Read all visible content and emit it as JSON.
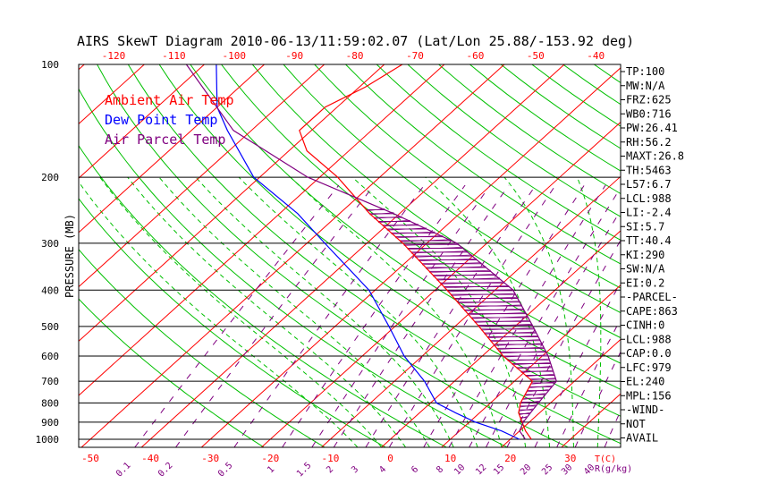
{
  "chart_data": {
    "type": "line",
    "title": "AIRS SkewT Diagram 2010-06-13/11:59:02.07 (Lat/Lon 25.88/-153.92 deg)",
    "ylabel": "PRESSURE (MB)",
    "xlabel": "T(C)",
    "mixing_ratio_unit": "R(g/kg)",
    "ylim": [
      1050,
      100
    ],
    "xlim": [
      -50,
      40
    ],
    "top_temp_ticks": [
      "-120",
      "-110",
      "-100",
      "-90",
      "-80",
      "-70",
      "-60",
      "-50",
      "-40"
    ],
    "bottom_temp_ticks": [
      "-50",
      "-40",
      "-30",
      "-20",
      "-10",
      "0",
      "10",
      "20",
      "30"
    ],
    "pressure_ticks": [
      "100",
      "200",
      "300",
      "400",
      "500",
      "600",
      "700",
      "800",
      "900",
      "1000"
    ],
    "mixing_ratio_labels": [
      "0.1",
      "0.2",
      "0.5",
      "1",
      "1.5",
      "2",
      "3",
      "4",
      "6",
      "8",
      "10",
      "12",
      "15",
      "20",
      "25",
      "30",
      "40"
    ],
    "legend": [
      {
        "label": "Ambient Air Temp",
        "color": "#ff0000"
      },
      {
        "label": "Dew Point Temp",
        "color": "#0000ff"
      },
      {
        "label": "Air Parcel Temp",
        "color": "#800080"
      }
    ],
    "series": [
      {
        "name": "Ambient Air Temp",
        "color": "#ff0000",
        "points": [
          [
            1000,
            23.5
          ],
          [
            950,
            21
          ],
          [
            900,
            18.8
          ],
          [
            850,
            16.5
          ],
          [
            800,
            15
          ],
          [
            700,
            13
          ],
          [
            600,
            3.5
          ],
          [
            500,
            -6
          ],
          [
            400,
            -18
          ],
          [
            300,
            -34
          ],
          [
            250,
            -45
          ],
          [
            200,
            -57
          ],
          [
            170,
            -67
          ],
          [
            150,
            -72
          ],
          [
            130,
            -72
          ],
          [
            115,
            -69
          ],
          [
            100,
            -67
          ]
        ]
      },
      {
        "name": "Dew Point Temp",
        "color": "#0000ff",
        "points": [
          [
            1000,
            21.5
          ],
          [
            950,
            17
          ],
          [
            900,
            11
          ],
          [
            850,
            6
          ],
          [
            800,
            1
          ],
          [
            700,
            -5
          ],
          [
            600,
            -13
          ],
          [
            500,
            -21
          ],
          [
            400,
            -31
          ],
          [
            300,
            -47
          ],
          [
            250,
            -57
          ],
          [
            200,
            -71
          ],
          [
            150,
            -84
          ],
          [
            130,
            -90
          ],
          [
            100,
            -98
          ]
        ]
      },
      {
        "name": "Air Parcel Temp",
        "color": "#800080",
        "points": [
          [
            1000,
            22.5
          ],
          [
            950,
            20
          ],
          [
            900,
            19
          ],
          [
            850,
            18.5
          ],
          [
            800,
            18
          ],
          [
            700,
            17
          ],
          [
            600,
            11
          ],
          [
            500,
            3
          ],
          [
            400,
            -7
          ],
          [
            300,
            -25
          ],
          [
            250,
            -41
          ],
          [
            200,
            -62
          ],
          [
            150,
            -83
          ],
          [
            100,
            -103
          ]
        ]
      }
    ]
  },
  "side_panel": [
    "TP:100",
    "MW:N/A",
    "FRZ:625",
    "WB0:716",
    "PW:26.41",
    "RH:56.2",
    "MAXT:26.8",
    "TH:5463",
    "L57:6.7",
    "LCL:988",
    "LI:-2.4",
    "SI:5.7",
    "TT:40.4",
    "KI:290",
    "SW:N/A",
    "EI:0.2",
    "-PARCEL-",
    "CAPE:863",
    "CINH:0",
    "LCL:988",
    "CAP:0.0",
    "LFC:979",
    "EL:240",
    "MPL:156",
    "-WIND-",
    " NOT",
    "AVAIL"
  ],
  "colors": {
    "isotherm": "#ff0000",
    "dry_adiabat": "#00c000",
    "moist_adiabat": "#00c000",
    "mixing_ratio": "#800080",
    "axis_text": "#000000",
    "temp_tick_text": "#ff0000"
  }
}
